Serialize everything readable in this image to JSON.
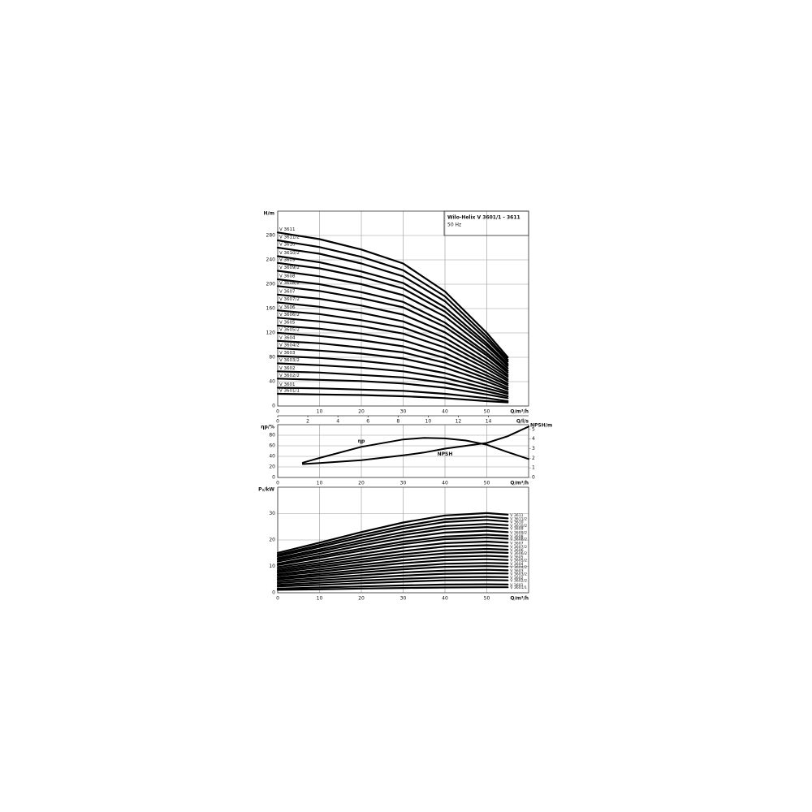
{
  "chart_data": [
    {
      "type": "line",
      "title": "Wilo-Helix V 3601/1 - 3611",
      "subtitle": "50 Hz",
      "ylabel": "H/m",
      "xlabel": "Q/m³/h",
      "x2label": "Q/l/s",
      "x2lim": [
        0,
        16.67
      ],
      "x2ticks": [
        0,
        2,
        4,
        6,
        8,
        10,
        12,
        14
      ],
      "xlim": [
        0,
        60
      ],
      "xticks": [
        0,
        10,
        20,
        30,
        40,
        50
      ],
      "ylim": [
        0,
        320
      ],
      "yticks": [
        0,
        40,
        80,
        120,
        160,
        200,
        240,
        280
      ],
      "grid": true,
      "color": "#000000",
      "label_position": "left",
      "x": [
        0,
        10,
        20,
        30,
        40,
        50,
        55
      ],
      "series": [
        {
          "name": "V 3611",
          "values": [
            285,
            274,
            257,
            234,
            188,
            120,
            80
          ]
        },
        {
          "name": "V 3611/2",
          "values": [
            272,
            261,
            245,
            223,
            180,
            114,
            76
          ]
        },
        {
          "name": "V 3610",
          "values": [
            260,
            250,
            234,
            213,
            172,
            109,
            73
          ]
        },
        {
          "name": "V 3610/2",
          "values": [
            246,
            236,
            221,
            202,
            162,
            103,
            69
          ]
        },
        {
          "name": "V 3609",
          "values": [
            235,
            226,
            212,
            193,
            155,
            99,
            66
          ]
        },
        {
          "name": "V 3609/2",
          "values": [
            222,
            213,
            200,
            182,
            147,
            93,
            62
          ]
        },
        {
          "name": "V 3608",
          "values": [
            208,
            200,
            187,
            171,
            137,
            87,
            58
          ]
        },
        {
          "name": "V 3608/2",
          "values": [
            197,
            189,
            177,
            162,
            130,
            83,
            55
          ]
        },
        {
          "name": "V 3607",
          "values": [
            183,
            176,
            165,
            150,
            121,
            77,
            51
          ]
        },
        {
          "name": "V 3607/2",
          "values": [
            170,
            163,
            153,
            139,
            112,
            71,
            48
          ]
        },
        {
          "name": "V 3606",
          "values": [
            157,
            151,
            141,
            129,
            104,
            66,
            44
          ]
        },
        {
          "name": "V 3606/2",
          "values": [
            145,
            139,
            131,
            119,
            96,
            61,
            41
          ]
        },
        {
          "name": "V 3605",
          "values": [
            132,
            127,
            119,
            108,
            87,
            55,
            37
          ]
        },
        {
          "name": "V 3605/2",
          "values": [
            120,
            115,
            108,
            98,
            79,
            50,
            34
          ]
        },
        {
          "name": "V 3604",
          "values": [
            107,
            103,
            96,
            88,
            71,
            45,
            30
          ]
        },
        {
          "name": "V 3604/2",
          "values": [
            95,
            91,
            86,
            78,
            63,
            40,
            27
          ]
        },
        {
          "name": "V 3603",
          "values": [
            82,
            79,
            74,
            67,
            54,
            34,
            23
          ]
        },
        {
          "name": "V 3603/2",
          "values": [
            70,
            67,
            63,
            57,
            46,
            29,
            20
          ]
        },
        {
          "name": "V 3602",
          "values": [
            57,
            55,
            51,
            47,
            38,
            24,
            16
          ]
        },
        {
          "name": "V 3602/2",
          "values": [
            45,
            43,
            41,
            37,
            30,
            19,
            13
          ]
        },
        {
          "name": "V 3601",
          "values": [
            30,
            29,
            27,
            25,
            20,
            13,
            8
          ]
        },
        {
          "name": "V 3601/1",
          "values": [
            20,
            19,
            18,
            16,
            13,
            8,
            6
          ]
        }
      ]
    },
    {
      "type": "line",
      "ylabel": "ηp/%",
      "y2label": "NPSH/m",
      "xlabel": "Q/m³/h",
      "xlim": [
        0,
        60
      ],
      "xticks": [
        0,
        10,
        20,
        30,
        40,
        50
      ],
      "ylim": [
        0,
        100
      ],
      "yticks": [
        0,
        20,
        40,
        60,
        80
      ],
      "y2lim": [
        0,
        5.5
      ],
      "y2ticks": [
        0,
        1,
        2,
        3,
        4,
        5
      ],
      "grid": true,
      "color": "#000000",
      "label_position": "curve",
      "x": [
        6,
        10,
        20,
        30,
        35,
        40,
        45,
        50,
        55,
        60
      ],
      "series": [
        {
          "name": "ηp",
          "values": [
            28,
            37,
            58,
            72,
            75,
            74,
            70,
            62,
            48,
            35
          ]
        },
        {
          "name": "NPSH",
          "axis": "y2",
          "values": [
            1.4,
            1.5,
            1.8,
            2.3,
            2.6,
            3.0,
            3.3,
            3.6,
            4.3,
            5.3
          ]
        }
      ]
    },
    {
      "type": "line",
      "ylabel": "P₂/kW",
      "xlabel": "Q/m³/h",
      "xlim": [
        0,
        60
      ],
      "xticks": [
        0,
        10,
        20,
        30,
        40,
        50
      ],
      "ylim": [
        0,
        40
      ],
      "yticks": [
        0,
        10,
        20,
        30
      ],
      "grid": true,
      "color": "#000000",
      "label_position": "right",
      "x": [
        0,
        10,
        20,
        30,
        40,
        50,
        55
      ],
      "series": [
        {
          "name": "V 3611",
          "values": [
            15.1,
            19.0,
            23.0,
            26.6,
            29.3,
            30.2,
            29.6
          ]
        },
        {
          "name": "V 3611/2",
          "values": [
            14.4,
            18.1,
            21.9,
            25.3,
            27.9,
            28.8,
            28.2
          ]
        },
        {
          "name": "V 3610",
          "values": [
            13.8,
            17.4,
            21.0,
            24.3,
            26.8,
            27.6,
            27.0
          ]
        },
        {
          "name": "V 3610/2",
          "values": [
            13.1,
            16.4,
            19.8,
            23.0,
            25.3,
            26.1,
            25.6
          ]
        },
        {
          "name": "V 3609",
          "values": [
            12.5,
            15.7,
            18.9,
            21.9,
            24.2,
            24.9,
            24.4
          ]
        },
        {
          "name": "V 3609/2",
          "values": [
            11.8,
            14.8,
            17.9,
            20.7,
            22.8,
            23.5,
            23.0
          ]
        },
        {
          "name": "V 3608",
          "values": [
            11.0,
            13.9,
            16.7,
            19.4,
            21.3,
            22.0,
            21.6
          ]
        },
        {
          "name": "V 3608/2",
          "values": [
            10.5,
            13.2,
            15.9,
            18.4,
            20.3,
            20.9,
            20.5
          ]
        },
        {
          "name": "V 3607",
          "values": [
            9.7,
            12.2,
            14.7,
            17.1,
            18.8,
            19.4,
            19.0
          ]
        },
        {
          "name": "V 3607/2",
          "values": [
            9.0,
            11.3,
            13.7,
            15.8,
            17.5,
            18.0,
            17.6
          ]
        },
        {
          "name": "V 3606",
          "values": [
            8.3,
            10.5,
            12.6,
            14.6,
            16.1,
            16.6,
            16.3
          ]
        },
        {
          "name": "V 3606/2",
          "values": [
            7.7,
            9.7,
            11.7,
            13.6,
            14.9,
            15.4,
            15.1
          ]
        },
        {
          "name": "V 3605",
          "values": [
            7.0,
            8.8,
            10.6,
            12.3,
            13.6,
            14.0,
            13.7
          ]
        },
        {
          "name": "V 3605/2",
          "values": [
            6.4,
            8.0,
            9.7,
            11.2,
            12.3,
            12.7,
            12.4
          ]
        },
        {
          "name": "V 3604",
          "values": [
            5.7,
            7.1,
            8.6,
            9.9,
            11.0,
            11.3,
            11.1
          ]
        },
        {
          "name": "V 3604/2",
          "values": [
            5.1,
            6.4,
            7.7,
            8.9,
            9.8,
            10.1,
            9.9
          ]
        },
        {
          "name": "V 3603",
          "values": [
            4.4,
            5.5,
            6.6,
            7.7,
            8.4,
            8.7,
            8.5
          ]
        },
        {
          "name": "V 3603/2",
          "values": [
            3.7,
            4.7,
            5.6,
            6.5,
            7.2,
            7.4,
            7.3
          ]
        },
        {
          "name": "V 3602",
          "values": [
            3.0,
            3.8,
            4.6,
            5.3,
            5.8,
            6.0,
            5.9
          ]
        },
        {
          "name": "V 3602/2",
          "values": [
            2.4,
            3.0,
            3.6,
            4.2,
            4.7,
            4.8,
            4.7
          ]
        },
        {
          "name": "V 3601",
          "values": [
            1.6,
            2.0,
            2.4,
            2.8,
            3.1,
            3.2,
            3.1
          ]
        },
        {
          "name": "V 3601/1",
          "values": [
            1.1,
            1.3,
            1.6,
            1.8,
            2.0,
            2.1,
            2.1
          ]
        }
      ]
    }
  ]
}
